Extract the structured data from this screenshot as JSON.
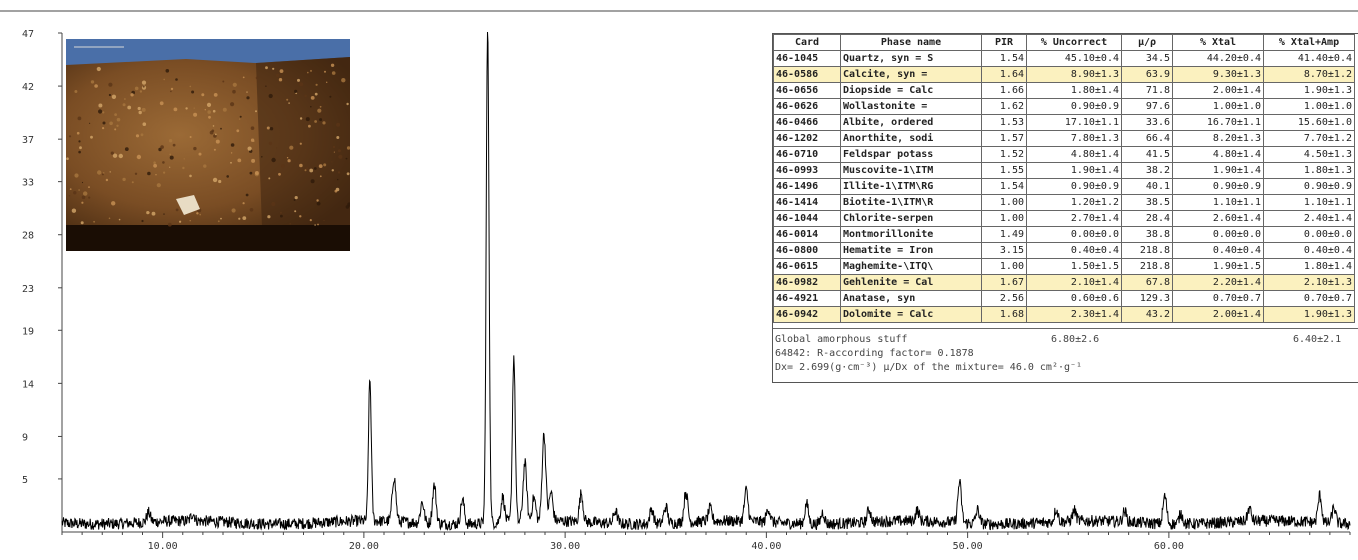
{
  "chart_data": {
    "type": "line",
    "title": "",
    "xlabel": "",
    "ylabel": "",
    "xlim": [
      5,
      69
    ],
    "ylim": [
      0,
      47
    ],
    "x_ticks": [
      "10.00",
      "20.00",
      "30.00",
      "40.00",
      "50.00",
      "60.00"
    ],
    "y_ticks": [
      "47",
      "42",
      "37",
      "33",
      "28",
      "23",
      "19",
      "14",
      "9",
      "5"
    ],
    "grid": false,
    "series": [
      {
        "name": "",
        "color": "#000000",
        "baseline": 0.9,
        "peaks": [
          {
            "x": 9.3,
            "height": 0.9
          },
          {
            "x": 11.5,
            "height": 0.7
          },
          {
            "x": 20.3,
            "height": 13.3
          },
          {
            "x": 21.5,
            "height": 4.2
          },
          {
            "x": 22.9,
            "height": 2.0
          },
          {
            "x": 23.5,
            "height": 3.6
          },
          {
            "x": 24.9,
            "height": 2.3
          },
          {
            "x": 26.15,
            "height": 46.5
          },
          {
            "x": 26.9,
            "height": 2.4
          },
          {
            "x": 27.45,
            "height": 15.6
          },
          {
            "x": 28.0,
            "height": 5.5
          },
          {
            "x": 28.45,
            "height": 2.2
          },
          {
            "x": 28.95,
            "height": 8.2
          },
          {
            "x": 29.3,
            "height": 2.7
          },
          {
            "x": 30.8,
            "height": 2.7
          },
          {
            "x": 32.5,
            "height": 1.2
          },
          {
            "x": 34.3,
            "height": 1.4
          },
          {
            "x": 35.0,
            "height": 1.6
          },
          {
            "x": 36.0,
            "height": 2.9
          },
          {
            "x": 37.2,
            "height": 1.2
          },
          {
            "x": 39.0,
            "height": 2.9
          },
          {
            "x": 40.1,
            "height": 1.3
          },
          {
            "x": 42.0,
            "height": 1.9
          },
          {
            "x": 42.8,
            "height": 1.1
          },
          {
            "x": 45.1,
            "height": 1.2
          },
          {
            "x": 47.5,
            "height": 1.0
          },
          {
            "x": 49.6,
            "height": 3.8
          },
          {
            "x": 50.5,
            "height": 1.3
          },
          {
            "x": 54.4,
            "height": 1.2
          },
          {
            "x": 55.3,
            "height": 1.0
          },
          {
            "x": 57.8,
            "height": 1.0
          },
          {
            "x": 59.8,
            "height": 2.6
          },
          {
            "x": 60.6,
            "height": 1.0
          },
          {
            "x": 64.0,
            "height": 1.2
          },
          {
            "x": 67.5,
            "height": 2.6
          },
          {
            "x": 68.2,
            "height": 1.5
          }
        ]
      }
    ]
  },
  "phase_table": {
    "headers": [
      "Card",
      "Phase name",
      "PIR",
      "% Uncorrect",
      "μ/ρ",
      "% Xtal",
      "% Xtal+Amp"
    ],
    "rows": [
      {
        "card": "46-1045",
        "name": "Quartz, syn = S",
        "pir": "1.54",
        "uncorrect": "45.10±0.4",
        "mu": "34.5",
        "xtal": "44.20±0.4",
        "xtal_amp": "41.40±0.4",
        "highlight": false
      },
      {
        "card": "46-0586",
        "name": "Calcite, syn =",
        "pir": "1.64",
        "uncorrect": "8.90±1.3",
        "mu": "63.9",
        "xtal": "9.30±1.3",
        "xtal_amp": "8.70±1.2",
        "highlight": true
      },
      {
        "card": "46-0656",
        "name": "Diopside = Calc",
        "pir": "1.66",
        "uncorrect": "1.80±1.4",
        "mu": "71.8",
        "xtal": "2.00±1.4",
        "xtal_amp": "1.90±1.3",
        "highlight": false
      },
      {
        "card": "46-0626",
        "name": "Wollastonite =",
        "pir": "1.62",
        "uncorrect": "0.90±0.9",
        "mu": "97.6",
        "xtal": "1.00±1.0",
        "xtal_amp": "1.00±1.0",
        "highlight": false
      },
      {
        "card": "46-0466",
        "name": "Albite, ordered",
        "pir": "1.53",
        "uncorrect": "17.10±1.1",
        "mu": "33.6",
        "xtal": "16.70±1.1",
        "xtal_amp": "15.60±1.0",
        "highlight": false
      },
      {
        "card": "46-1202",
        "name": "Anorthite, sodi",
        "pir": "1.57",
        "uncorrect": "7.80±1.3",
        "mu": "66.4",
        "xtal": "8.20±1.3",
        "xtal_amp": "7.70±1.2",
        "highlight": false
      },
      {
        "card": "46-0710",
        "name": "Feldspar potass",
        "pir": "1.52",
        "uncorrect": "4.80±1.4",
        "mu": "41.5",
        "xtal": "4.80±1.4",
        "xtal_amp": "4.50±1.3",
        "highlight": false
      },
      {
        "card": "46-0993",
        "name": "Muscovite-1\\ITM",
        "pir": "1.55",
        "uncorrect": "1.90±1.4",
        "mu": "38.2",
        "xtal": "1.90±1.4",
        "xtal_amp": "1.80±1.3",
        "highlight": false
      },
      {
        "card": "46-1496",
        "name": "Illite-1\\ITM\\RG",
        "pir": "1.54",
        "uncorrect": "0.90±0.9",
        "mu": "40.1",
        "xtal": "0.90±0.9",
        "xtal_amp": "0.90±0.9",
        "highlight": false
      },
      {
        "card": "46-1414",
        "name": "Biotite-1\\ITM\\R",
        "pir": "1.00",
        "uncorrect": "1.20±1.2",
        "mu": "38.5",
        "xtal": "1.10±1.1",
        "xtal_amp": "1.10±1.1",
        "highlight": false
      },
      {
        "card": "46-1044",
        "name": "Chlorite-serpen",
        "pir": "1.00",
        "uncorrect": "2.70±1.4",
        "mu": "28.4",
        "xtal": "2.60±1.4",
        "xtal_amp": "2.40±1.4",
        "highlight": false
      },
      {
        "card": "46-0014",
        "name": "Montmorillonite",
        "pir": "1.49",
        "uncorrect": "0.00±0.0",
        "mu": "38.8",
        "xtal": "0.00±0.0",
        "xtal_amp": "0.00±0.0",
        "highlight": false
      },
      {
        "card": "46-0800",
        "name": "Hematite = Iron",
        "pir": "3.15",
        "uncorrect": "0.40±0.4",
        "mu": "218.8",
        "xtal": "0.40±0.4",
        "xtal_amp": "0.40±0.4",
        "highlight": false
      },
      {
        "card": "46-0615",
        "name": "Maghemite-\\ITQ\\",
        "pir": "1.00",
        "uncorrect": "1.50±1.5",
        "mu": "218.8",
        "xtal": "1.90±1.5",
        "xtal_amp": "1.80±1.4",
        "highlight": false
      },
      {
        "card": "46-0982",
        "name": "Gehlenite = Cal",
        "pir": "1.67",
        "uncorrect": "2.10±1.4",
        "mu": "67.8",
        "xtal": "2.20±1.4",
        "xtal_amp": "2.10±1.3",
        "highlight": true
      },
      {
        "card": "46-4921",
        "name": "Anatase, syn",
        "pir": "2.56",
        "uncorrect": "0.60±0.6",
        "mu": "129.3",
        "xtal": "0.70±0.7",
        "xtal_amp": "0.70±0.7",
        "highlight": false
      },
      {
        "card": "46-0942",
        "name": "Dolomite = Calc",
        "pir": "1.68",
        "uncorrect": "2.30±1.4",
        "mu": "43.2",
        "xtal": "2.00±1.4",
        "xtal_amp": "1.90±1.3",
        "highlight": true
      }
    ],
    "highlight_color": "#fbf1bf"
  },
  "summary": {
    "amorphous_label": "Global amorphous stuff",
    "amorphous_value": "6.80±2.6",
    "amorphous_value_total": "6.40±2.1",
    "r_factor": "64842: R-according factor= 0.1878",
    "density": "Dx= 2.699(g·cm⁻³)   μ/Dx of the mixture= 46.0 cm²·g⁻¹"
  },
  "photo": {
    "description_icon": "rock-sample-photo",
    "colors": {
      "rock": "#8a5a2b",
      "dark": "#2a1608",
      "sky": "#4a6fa8",
      "chip": "#e8dcc4"
    }
  }
}
